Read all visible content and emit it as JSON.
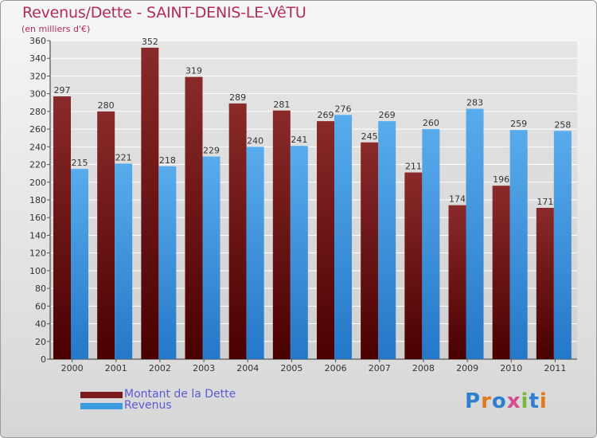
{
  "colors": {
    "dette": "#7a1a1a",
    "revenus": "#3b9be0",
    "title": "#b42b5a",
    "legend_text": "#5b5bd8",
    "grid": "#ffffff"
  },
  "logo": {
    "text": "Proxiti",
    "letter_colors": [
      "#2e7fd0",
      "#e07a1c",
      "#2e7fd0",
      "#d64b8f",
      "#7ab83a",
      "#2e7fd0",
      "#e07a1c"
    ]
  },
  "chart_data": {
    "type": "bar",
    "title": "Revenus/Dette - SAINT-DENIS-LE-VêTU",
    "subtitle": "(en milliers d'€)",
    "xlabel": "",
    "ylabel": "",
    "categories": [
      "2000",
      "2001",
      "2002",
      "2003",
      "2004",
      "2005",
      "2006",
      "2007",
      "2008",
      "2009",
      "2010",
      "2011"
    ],
    "series": [
      {
        "name": "Montant de la Dette",
        "values": [
          297,
          280,
          352,
          319,
          289,
          281,
          269,
          245,
          211,
          174,
          196,
          171
        ]
      },
      {
        "name": "Revenus",
        "values": [
          215,
          221,
          218,
          229,
          240,
          241,
          276,
          269,
          260,
          283,
          259,
          258
        ]
      }
    ],
    "ylim": [
      0,
      360
    ],
    "ytick_step": 20,
    "yticks": [
      "0",
      "20",
      "40",
      "60",
      "80",
      "100",
      "120",
      "140",
      "160",
      "180",
      "200",
      "220",
      "240",
      "260",
      "280",
      "300",
      "320",
      "340",
      "360"
    ],
    "grid": true,
    "legend_position": "bottom-left"
  }
}
